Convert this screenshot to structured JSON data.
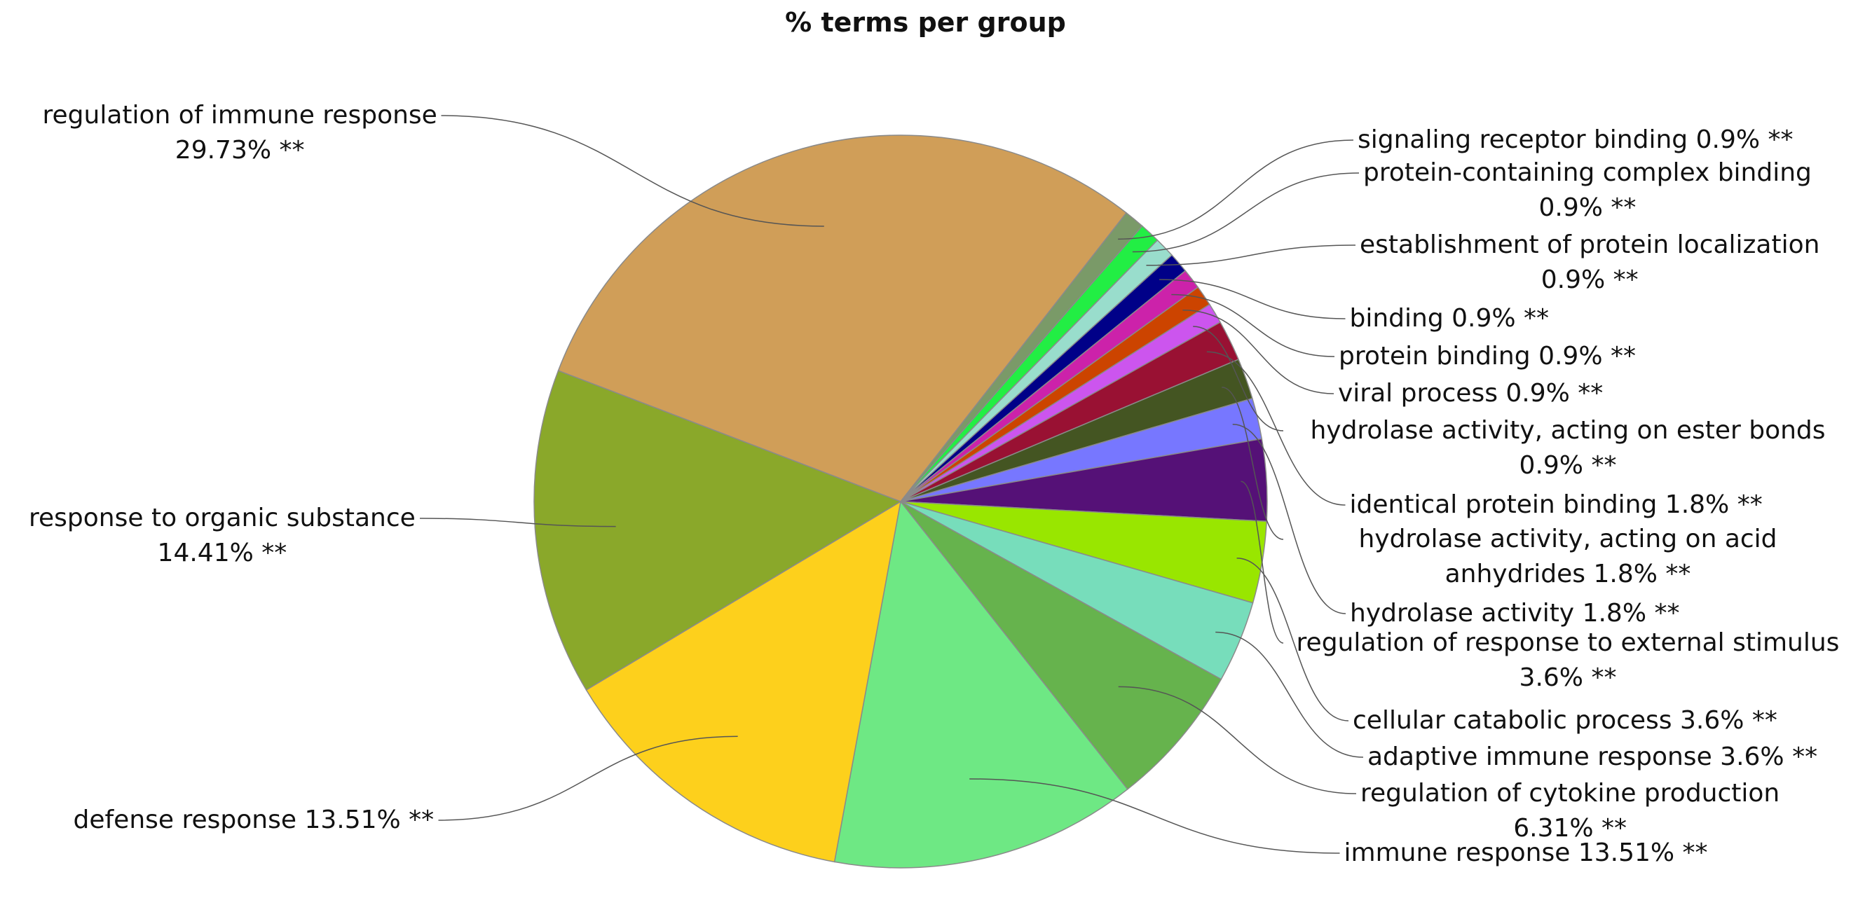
{
  "chart_data": {
    "type": "pie",
    "title": "% terms per group",
    "categories": [
      "signaling receptor binding",
      "protein-containing complex binding",
      "establishment of protein localization",
      "binding",
      "protein binding",
      "viral process",
      "hydrolase activity, acting on ester bonds",
      "identical protein binding",
      "hydrolase activity, acting on acid anhydrides",
      "hydrolase activity",
      "regulation of response to external stimulus",
      "cellular catabolic process",
      "adaptive immune response",
      "regulation of cytokine production",
      "immune response",
      "defense response",
      "response to organic substance",
      "regulation of immune response"
    ],
    "values": [
      0.9,
      0.9,
      0.9,
      0.9,
      0.9,
      0.9,
      0.9,
      1.8,
      1.8,
      1.8,
      3.6,
      3.6,
      3.6,
      6.31,
      13.51,
      13.51,
      14.41,
      29.73
    ],
    "value_labels": [
      "0.9% **",
      "0.9% **",
      "0.9% **",
      "0.9% **",
      "0.9% **",
      "0.9% **",
      "0.9% **",
      "1.8% **",
      "1.8% **",
      "1.8% **",
      "3.6% **",
      "3.6% **",
      "3.6% **",
      "6.31% **",
      "13.51% **",
      "13.51% **",
      "14.41% **",
      "29.73% **"
    ],
    "colors": [
      "#7a9a68",
      "#22ee44",
      "#99ddcc",
      "#000088",
      "#cc22aa",
      "#cc4400",
      "#cc55ee",
      "#991133",
      "#445522",
      "#7777ff",
      "#551177",
      "#99e600",
      "#77ddbb",
      "#66b34d",
      "#6ee884",
      "#fdd01c",
      "#8aa82a",
      "#d09e58"
    ]
  }
}
